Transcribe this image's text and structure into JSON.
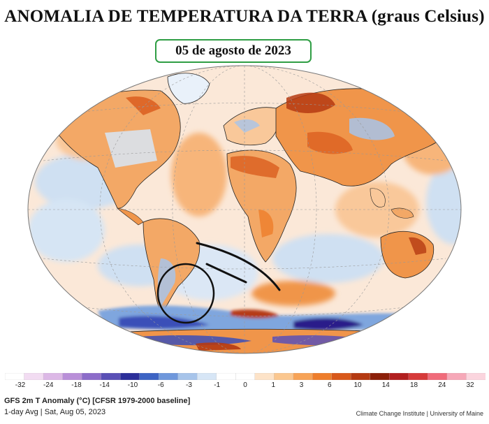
{
  "header": {
    "title": "ANOMALIA DE TEMPERATURA DA TERRA (graus Celsius)",
    "date": "05 de agosto de 2023"
  },
  "legend": {
    "tick_labels": [
      "-32",
      "-24",
      "-18",
      "-14",
      "-10",
      "-6",
      "-3",
      "-1",
      "0",
      "1",
      "3",
      "6",
      "10",
      "14",
      "18",
      "24",
      "32"
    ],
    "colors": [
      "#ffffff",
      "#f2dcf2",
      "#dcb8e6",
      "#b98fd8",
      "#8c6cc9",
      "#5a50b6",
      "#2c2f9a",
      "#3d64c4",
      "#6f98dc",
      "#a7c4ea",
      "#d7e6f6",
      "#ffffff",
      "#ffffff",
      "#fde3c8",
      "#fbc78f",
      "#f7a357",
      "#ee7d2b",
      "#d8581a",
      "#b53a12",
      "#8c2009",
      "#b21f1f",
      "#d63a3a",
      "#f06b7a",
      "#f6a8b8",
      "#fbd5de"
    ]
  },
  "footer": {
    "line1": "GFS 2m T Anomaly (°C) [CFSR 1979-2000 baseline]",
    "line2": "1-day Avg | Sat, Aug 05, 2023",
    "credit": "Climate Change Institute | University of Maine"
  },
  "colors": {
    "ocean": "#fbefe6",
    "warm_light": "#f9c89a",
    "warm": "#f0954a",
    "warm_strong": "#d8581a",
    "hot": "#a92a0c",
    "cool_light": "#cfe0f2",
    "cool": "#7fa6de",
    "cold": "#3b4fb8",
    "very_cold": "#2a1f8a",
    "frame_green": "#2f9e44"
  }
}
